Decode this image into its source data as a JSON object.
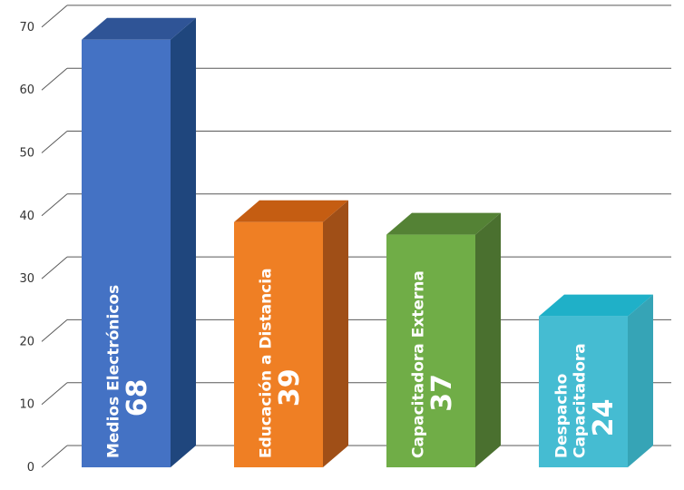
{
  "chart_data": {
    "type": "bar",
    "style": "3d-column",
    "title": "",
    "xlabel": "",
    "ylabel": "",
    "ylim": [
      0,
      70
    ],
    "yticks": [
      0,
      10,
      20,
      30,
      40,
      50,
      60,
      70
    ],
    "grid": true,
    "legend": "none",
    "categories": [
      "Medios Electrónicos",
      "Educación a Distancia",
      "Capacitadora Externa",
      "Despacho Capacitadora"
    ],
    "label_lines": [
      [
        "Medios Electrónicos"
      ],
      [
        "Educación a Distancia"
      ],
      [
        "Capacitadora Externa"
      ],
      [
        "Despacho",
        "Capacitadora"
      ]
    ],
    "values": [
      68,
      39,
      37,
      24
    ],
    "colors": [
      {
        "front": "#4472c4",
        "top": "#2f5496",
        "side": "#1f467d"
      },
      {
        "front": "#ef7f24",
        "top": "#c55d12",
        "side": "#a04f17"
      },
      {
        "front": "#70ad47",
        "top": "#548235",
        "side": "#4a702f"
      },
      {
        "front": "#45bcd2",
        "top": "#1fb0c8",
        "side": "#36a4b6"
      }
    ]
  }
}
